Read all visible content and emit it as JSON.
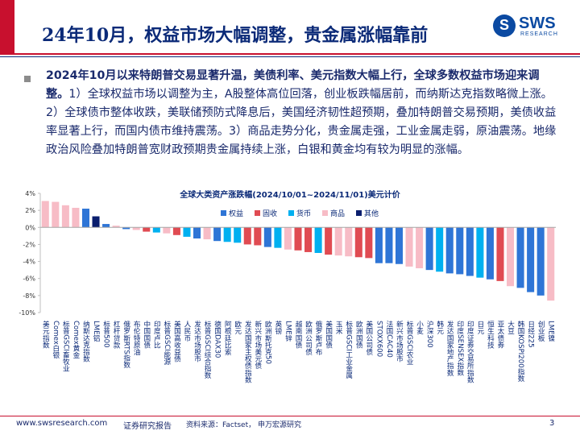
{
  "header": {
    "title": "24年10月，权益市场大幅调整，贵金属涨幅靠前",
    "logo_name": "SWS",
    "logo_sub": "RESEARCH"
  },
  "summary": {
    "bold_text": "2024年10月以来特朗普交易显著升温，美债利率、美元指数大幅上行，全球多数权益市场迎来调整。",
    "body_text": "1）全球权益市场以调整为主，A股整体高位回落，创业板跌幅居前，而纳斯达克指数略微上涨。2）全球债市整体收跌，美联储预防式降息后，美国经济韧性超预期，叠加特朗普交易预期，美债收益率显著上行，而国内债市维持震荡。3）商品走势分化，贵金属走强，工业金属走弱，原油震荡。地缘政治风险叠加特朗普宽财政预期贵金属持续上涨，白银和黄金均有较为明显的涨幅。"
  },
  "chart_data": {
    "type": "bar",
    "title": "全球大类资产涨跌幅(2024/10/01~2024/11/01)美元计价",
    "ylim": [
      -10,
      4
    ],
    "yticks": [
      4,
      2,
      0,
      -2,
      -4,
      -6,
      -8,
      -10
    ],
    "ytick_labels": [
      "4%",
      "2%",
      "0%",
      "-2%",
      "-4%",
      "-6%",
      "-8%",
      "-10%"
    ],
    "legend_position": "top-right",
    "grid": false,
    "series": [
      {
        "name": "权益",
        "color": "#2e75d6"
      },
      {
        "name": "固收",
        "color": "#e04b52"
      },
      {
        "name": "货币",
        "color": "#00b0f0"
      },
      {
        "name": "商品",
        "color": "#f7bcc6"
      },
      {
        "name": "其他",
        "color": "#0a1e6e"
      }
    ],
    "categories": [
      "美元指数",
      "Comex白银",
      "标普GSCI畜牧业",
      "Comex黄金",
      "纳斯达克指数",
      "LME铝",
      "标普500",
      "杠杆贷款",
      "俄罗斯RTS指数",
      "布伦特原油",
      "中国国债",
      "印度卢比",
      "标普GSCI能源",
      "美国高收益债",
      "人民币",
      "发达市场股市",
      "标普GSCI综合指数",
      "德国DAX30",
      "阿根廷比索",
      "欧元",
      "发达国家主权债指数",
      "新兴市场美元债",
      "欧洲斯托克50",
      "英镑",
      "LME锌",
      "越南国债",
      "欧洲公司债",
      "俄罗斯卢布",
      "美国国债",
      "玉米",
      "标普GSCI工业金属",
      "欧洲国债",
      "美国公司债",
      "STOXX600",
      "法国CAC40",
      "新兴市场股市",
      "标普GSCI农业",
      "小麦",
      "沪深300",
      "韩元",
      "发达国家地产指数",
      "印度SENSEX指数",
      "印度证券交易所指数",
      "日元",
      "恒生科技",
      "亚太债券",
      "大豆",
      "韩国KOSPI200指数",
      "日经225",
      "创业板",
      "LME镍"
    ],
    "values": [
      3.1,
      3.0,
      2.6,
      2.3,
      2.2,
      1.3,
      0.4,
      0.2,
      -0.2,
      -0.3,
      -0.5,
      -0.6,
      -0.7,
      -0.9,
      -1.1,
      -1.3,
      -1.4,
      -1.6,
      -1.7,
      -1.8,
      -2.0,
      -2.1,
      -2.3,
      -2.4,
      -2.6,
      -2.7,
      -2.9,
      -3.0,
      -3.2,
      -3.3,
      -3.4,
      -3.5,
      -3.6,
      -4.2,
      -4.2,
      -4.3,
      -4.6,
      -4.8,
      -5.0,
      -5.2,
      -5.4,
      -5.5,
      -5.7,
      -5.9,
      -6.1,
      -6.3,
      -6.9,
      -7.1,
      -7.6,
      -8.0,
      -8.6
    ],
    "value_groups": [
      3,
      3,
      3,
      3,
      0,
      4,
      0,
      3,
      0,
      3,
      1,
      2,
      3,
      1,
      2,
      0,
      3,
      0,
      2,
      2,
      1,
      1,
      0,
      2,
      3,
      1,
      1,
      2,
      1,
      3,
      3,
      1,
      1,
      0,
      0,
      0,
      3,
      3,
      0,
      2,
      0,
      0,
      0,
      2,
      0,
      1,
      3,
      0,
      0,
      0,
      3
    ]
  },
  "footer": {
    "url": "www.swsresearch.com",
    "label": "证券研究报告",
    "source": "资料来源：Factset， 申万宏源研究",
    "page": "3"
  }
}
